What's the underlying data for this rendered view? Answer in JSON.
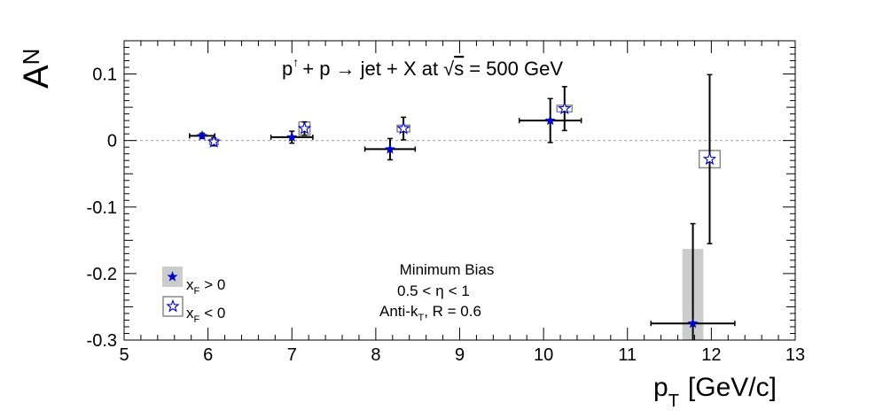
{
  "chart_data": {
    "type": "scatter",
    "title": "p↑ + p → jet + X at √s = 500 GeV",
    "title_parts": {
      "p": "p",
      "arrow_sup": "↑",
      "rest": "+ p → jet + X at",
      "sqrt": "√",
      "s": "s",
      "energy": "= 500 GeV"
    },
    "ylabel": {
      "main": "A",
      "sub": "N"
    },
    "xlabel": {
      "main": "p",
      "sub": "T",
      "unit": "[GeV/c]"
    },
    "xlim": [
      5,
      13
    ],
    "ylim": [
      -0.3,
      0.15
    ],
    "x_ticks": [
      "5",
      "6",
      "7",
      "8",
      "9",
      "10",
      "11",
      "12",
      "13"
    ],
    "y_ticks": [
      "0.1",
      "0",
      "-0.1",
      "-0.2",
      "-0.3"
    ],
    "reference_line": 0,
    "series": [
      {
        "name": "x_F > 0",
        "marker": "filled-star",
        "color": "#0000cc",
        "points": [
          {
            "x": 5.93,
            "y": 0.007,
            "xerr": 0.15,
            "yerr": 0.004,
            "syst": 0.004,
            "sys_w": 0.08
          },
          {
            "x": 7.0,
            "y": 0.005,
            "xerr": 0.25,
            "yerr": 0.009,
            "syst": 0.002,
            "sys_w": 0.08
          },
          {
            "x": 8.17,
            "y": -0.013,
            "xerr": 0.3,
            "yerr": 0.016,
            "syst": 0.002,
            "sys_w": 0.08
          },
          {
            "x": 10.08,
            "y": 0.03,
            "xerr": 0.37,
            "yerr": 0.033,
            "syst": 0.003,
            "sys_w": 0.08
          },
          {
            "x": 11.78,
            "y": -0.275,
            "xerr": 0.5,
            "yerr": 0.15,
            "syst": 0.112,
            "sys_w": 0.25
          }
        ]
      },
      {
        "name": "x_F < 0",
        "marker": "open-star",
        "color": "#0000cc",
        "points": [
          {
            "x": 6.07,
            "y": -0.002,
            "xerr": 0,
            "yerr": 0.006,
            "syst": 0.004,
            "sys_w": 0.1
          },
          {
            "x": 7.15,
            "y": 0.018,
            "xerr": 0,
            "yerr": 0.01,
            "syst": 0.01,
            "sys_w": 0.13
          },
          {
            "x": 8.33,
            "y": 0.018,
            "xerr": 0,
            "yerr": 0.017,
            "syst": 0.005,
            "sys_w": 0.15
          },
          {
            "x": 10.25,
            "y": 0.048,
            "xerr": 0,
            "yerr": 0.033,
            "syst": 0.005,
            "sys_w": 0.18
          },
          {
            "x": 11.98,
            "y": -0.028,
            "xerr": 0,
            "yerr": 0.127,
            "syst": 0.013,
            "sys_w": 0.25
          }
        ]
      }
    ],
    "legend": {
      "placement": "bottom-left",
      "entries": [
        {
          "main": "x",
          "sub": "F",
          "rel": "> 0",
          "marker": "filled-star"
        },
        {
          "main": "x",
          "sub": "F",
          "rel": "< 0",
          "marker": "open-star"
        }
      ]
    },
    "annotations": {
      "line1": "Minimum Bias",
      "line2": {
        "pre": "0.5 <",
        "eta": "η",
        "post": "< 1"
      },
      "line3": {
        "pre": "Anti-k",
        "sub": "T",
        "post": ", R = 0.6"
      }
    },
    "colors": {
      "marker": "#0000cc",
      "error_bar": "#000000",
      "syst_box_fill": "#cccccc",
      "syst_box_stroke": "#888888",
      "zero_line": "#aaaaaa"
    }
  }
}
